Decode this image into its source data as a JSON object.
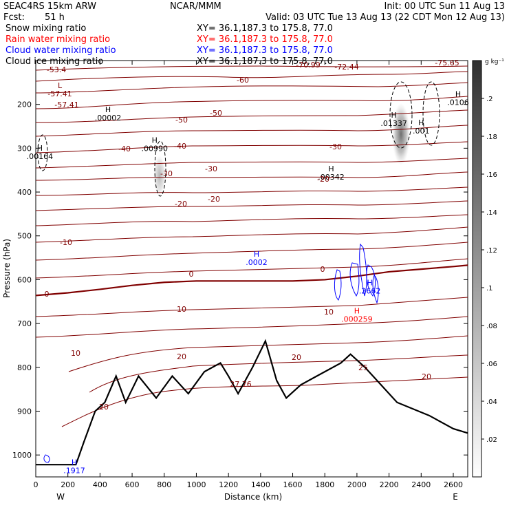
{
  "header": {
    "model": "SEAC4RS 15km ARW",
    "org": "NCAR/MMM",
    "init": "Init: 00 UTC Sun 11 Aug 13",
    "fcst_label": "Fcst:",
    "fcst_value": "51 h",
    "valid": "Valid: 03 UTC Tue 13 Aug 13 (22 CDT Mon 12 Aug 13)"
  },
  "fields": [
    {
      "label": "Snow mixing ratio",
      "xy": "",
      "color": "#000000"
    },
    {
      "label": "Rain water mixing ratio",
      "xy": "XY=  36.1,187.3 to 175.8, 77.0",
      "color": "#ff0000"
    },
    {
      "label": "Cloud water mixing ratio",
      "xy": "XY=  36.1,187.3 to 175.8, 77.0",
      "color": "#0000ff"
    },
    {
      "label": "Cloud ice mixing ratio",
      "xy": "XY=  36.1,187.3 to 175.8, 77.0",
      "color": "#000000"
    }
  ],
  "snow_xy": "XY=    36.1,187.3 to 175.8, 77.0",
  "chart_data": {
    "type": "contour",
    "xlabel": "Distance (km)",
    "ylabel": "Pressure (hPa)",
    "xlim": [
      0,
      2690
    ],
    "ylim": [
      1050,
      100
    ],
    "xticks": [
      0,
      200,
      400,
      600,
      800,
      1000,
      1200,
      1400,
      1600,
      1800,
      2000,
      2200,
      2400,
      2600
    ],
    "yticks": [
      200,
      300,
      400,
      500,
      600,
      700,
      800,
      900,
      1000
    ],
    "endpoints": {
      "left": "W",
      "right": "E"
    },
    "colorbar": {
      "unit": "g kg⁻¹",
      "ticks": [
        ".02",
        ".04",
        ".06",
        ".08",
        ".1",
        ".12",
        ".14",
        ".16",
        ".18",
        ".2"
      ],
      "range": [
        0,
        0.22
      ]
    },
    "temperature_contour_labels": [
      "-60",
      "-50",
      "-40",
      "-30",
      "-20",
      "-10",
      "0",
      "10",
      "20",
      "-53.4",
      "-57.41",
      "-70.99",
      "-72.44",
      "-75.65",
      "27.76"
    ],
    "zero_isotherm": [
      [
        0,
        636
      ],
      [
        200,
        630
      ],
      [
        400,
        622
      ],
      [
        600,
        613
      ],
      [
        800,
        606
      ],
      [
        1000,
        603
      ],
      [
        1200,
        603
      ],
      [
        1400,
        603
      ],
      [
        1600,
        603
      ],
      [
        1800,
        600
      ],
      [
        2000,
        592
      ],
      [
        2200,
        582
      ],
      [
        2400,
        576
      ],
      [
        2600,
        570
      ],
      [
        2690,
        567
      ]
    ],
    "terrain": [
      [
        0,
        1022
      ],
      [
        250,
        1022
      ],
      [
        300,
        970
      ],
      [
        370,
        900
      ],
      [
        430,
        880
      ],
      [
        500,
        820
      ],
      [
        560,
        880
      ],
      [
        640,
        820
      ],
      [
        750,
        870
      ],
      [
        850,
        820
      ],
      [
        950,
        860
      ],
      [
        1050,
        810
      ],
      [
        1150,
        790
      ],
      [
        1200,
        820
      ],
      [
        1260,
        860
      ],
      [
        1350,
        800
      ],
      [
        1430,
        740
      ],
      [
        1500,
        830
      ],
      [
        1560,
        870
      ],
      [
        1650,
        840
      ],
      [
        1750,
        820
      ],
      [
        1900,
        790
      ],
      [
        1960,
        770
      ],
      [
        2050,
        800
      ],
      [
        2150,
        840
      ],
      [
        2250,
        880
      ],
      [
        2450,
        910
      ],
      [
        2600,
        940
      ],
      [
        2690,
        950
      ]
    ],
    "extrema": [
      {
        "kind": "L",
        "value": "-57.41",
        "x": 150,
        "y": 175
      },
      {
        "kind": "H",
        "field": "snow",
        "value": ".00002",
        "x": 450,
        "y": 230
      },
      {
        "kind": "H",
        "field": "snow",
        "value": ".00164",
        "x": 25,
        "y": 318
      },
      {
        "kind": "H",
        "field": "snow",
        "value": ".00990",
        "x": 740,
        "y": 300
      },
      {
        "kind": "H",
        "field": "snow",
        "value": ".00342",
        "x": 1840,
        "y": 365
      },
      {
        "kind": "H",
        "field": "ice",
        "value": ".01337",
        "x": 2230,
        "y": 243
      },
      {
        "kind": "H",
        "field": "ice",
        "value": ".001",
        "x": 2400,
        "y": 260
      },
      {
        "kind": "H",
        "field": "ice",
        "value": ".0106",
        "x": 2630,
        "y": 195
      },
      {
        "kind": "H",
        "field": "cloud",
        "value": ".0002",
        "x": 1375,
        "y": 560
      },
      {
        "kind": "H",
        "field": "cloud",
        "value": ".2662",
        "x": 2080,
        "y": 625
      },
      {
        "kind": "H",
        "field": "rain",
        "value": ".000259",
        "x": 2000,
        "y": 690
      },
      {
        "kind": "H",
        "field": "cloud",
        "value": ".1917",
        "x": 240,
        "y": 1035
      }
    ],
    "shaded_ice_maxima": [
      {
        "x": 770,
        "y": 360,
        "peak": 0.08
      },
      {
        "x": 2270,
        "y": 270,
        "peak": 0.16
      }
    ]
  }
}
